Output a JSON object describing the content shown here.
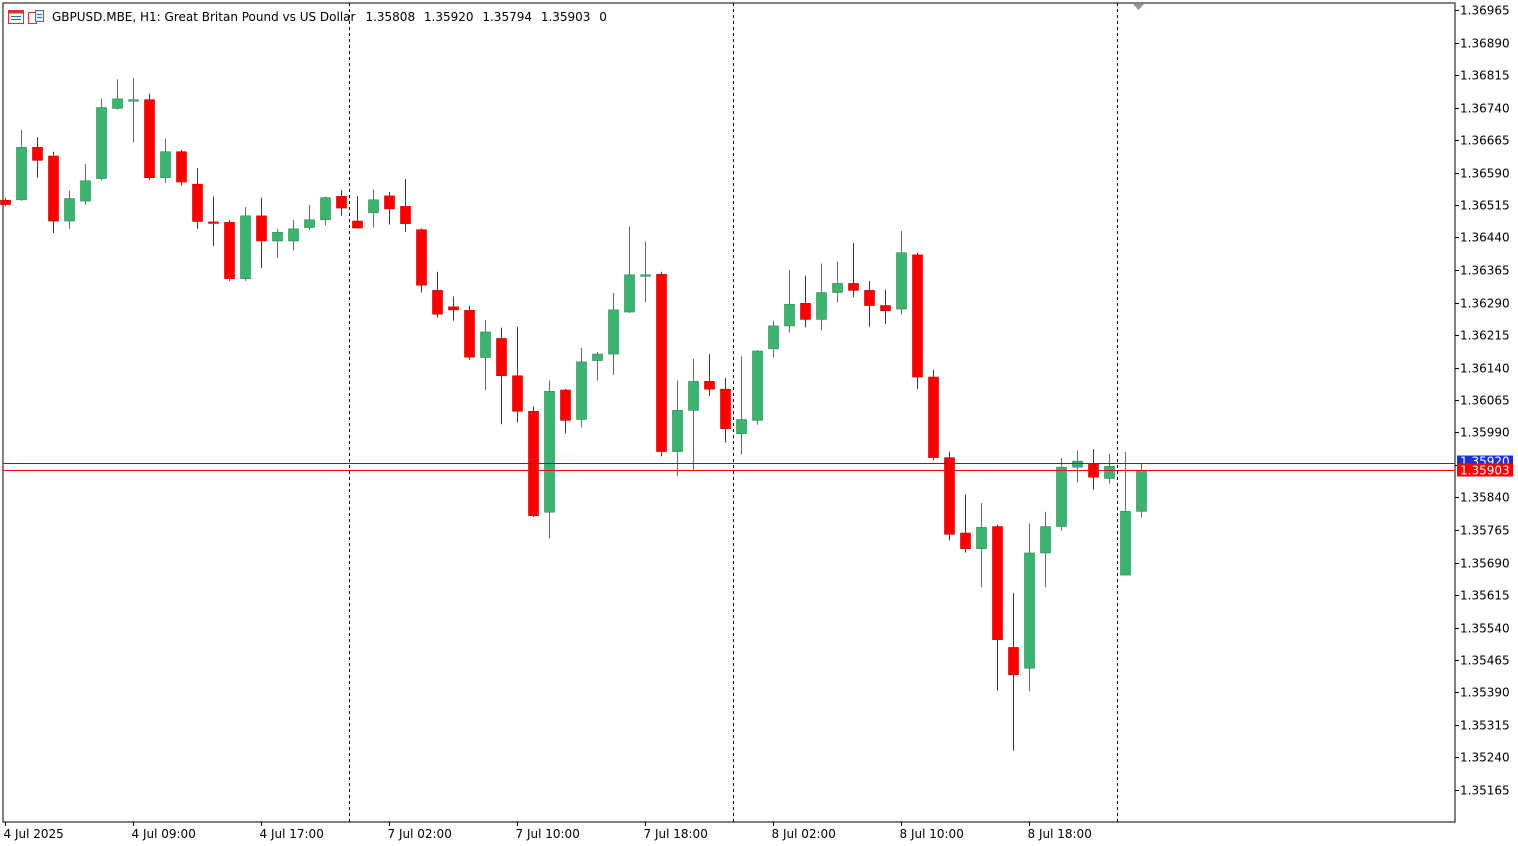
{
  "header": {
    "symbol_line": "GBPUSD.MBE, H1:  Great Britan Pound vs US Dollar",
    "open": "1.35808",
    "high": "1.35920",
    "low": "1.35794",
    "close": "1.35903",
    "volume": "0"
  },
  "colors": {
    "bull": "#3cb371",
    "bear": "#ff0000",
    "wick_bull": "#2e8b57",
    "wick_bear": "#cc0000",
    "bid_line": "#ff0000",
    "ask_line": "#1f2fd6",
    "grid": "#000000",
    "background": "#ffffff"
  },
  "chart_data": {
    "type": "candlestick",
    "symbol": "GBPUSD.MBE",
    "timeframe": "H1",
    "y_range": [
      1.3509,
      1.3704
    ],
    "y_ticks": [
      "1.36965",
      "1.36890",
      "1.36815",
      "1.36740",
      "1.36665",
      "1.36590",
      "1.36515",
      "1.36440",
      "1.36365",
      "1.36290",
      "1.36215",
      "1.36140",
      "1.36065",
      "1.35990",
      "1.35915",
      "1.35840",
      "1.35765",
      "1.35690",
      "1.35615",
      "1.35540",
      "1.35465",
      "1.35390",
      "1.35315",
      "1.35240",
      "1.35165"
    ],
    "x_labels": [
      {
        "text": "4 Jul 2025",
        "index": 0
      },
      {
        "text": "4 Jul 09:00",
        "index": 8
      },
      {
        "text": "4 Jul 17:00",
        "index": 16
      },
      {
        "text": "7 Jul 02:00",
        "index": 24
      },
      {
        "text": "7 Jul 10:00",
        "index": 32
      },
      {
        "text": "7 Jul 18:00",
        "index": 40
      },
      {
        "text": "8 Jul 02:00",
        "index": 48
      },
      {
        "text": "8 Jul 10:00",
        "index": 56
      },
      {
        "text": "8 Jul 18:00",
        "index": 64
      }
    ],
    "day_separators": [
      21.5,
      45.5,
      69.5
    ],
    "bid": 1.35903,
    "bid_label": "1.35903",
    "ask": 1.3592,
    "ask_label": "1.35920",
    "candles": [
      {
        "o": 1.36526,
        "h": 1.36532,
        "l": 1.36512,
        "c": 1.36516
      },
      {
        "o": 1.36527,
        "h": 1.36688,
        "l": 1.36525,
        "c": 1.36648
      },
      {
        "o": 1.36648,
        "h": 1.36672,
        "l": 1.36578,
        "c": 1.36618
      },
      {
        "o": 1.36628,
        "h": 1.36638,
        "l": 1.3645,
        "c": 1.36478
      },
      {
        "o": 1.36478,
        "h": 1.36548,
        "l": 1.3646,
        "c": 1.3653
      },
      {
        "o": 1.36524,
        "h": 1.3661,
        "l": 1.36516,
        "c": 1.36571
      },
      {
        "o": 1.36576,
        "h": 1.3676,
        "l": 1.36572,
        "c": 1.3674
      },
      {
        "o": 1.36738,
        "h": 1.36805,
        "l": 1.36735,
        "c": 1.3676
      },
      {
        "o": 1.36755,
        "h": 1.36808,
        "l": 1.3666,
        "c": 1.36758
      },
      {
        "o": 1.36758,
        "h": 1.36772,
        "l": 1.36572,
        "c": 1.36578
      },
      {
        "o": 1.36578,
        "h": 1.36668,
        "l": 1.36566,
        "c": 1.36638
      },
      {
        "o": 1.36638,
        "h": 1.36642,
        "l": 1.3656,
        "c": 1.36568
      },
      {
        "o": 1.36563,
        "h": 1.366,
        "l": 1.3646,
        "c": 1.36477
      },
      {
        "o": 1.36476,
        "h": 1.36535,
        "l": 1.3642,
        "c": 1.36473
      },
      {
        "o": 1.36475,
        "h": 1.3648,
        "l": 1.3634,
        "c": 1.36345
      },
      {
        "o": 1.36345,
        "h": 1.3651,
        "l": 1.3634,
        "c": 1.3649
      },
      {
        "o": 1.3649,
        "h": 1.36532,
        "l": 1.3637,
        "c": 1.36432
      },
      {
        "o": 1.36432,
        "h": 1.3646,
        "l": 1.36393,
        "c": 1.36452
      },
      {
        "o": 1.36432,
        "h": 1.3648,
        "l": 1.3641,
        "c": 1.3646
      },
      {
        "o": 1.36463,
        "h": 1.36515,
        "l": 1.36458,
        "c": 1.36481
      },
      {
        "o": 1.36481,
        "h": 1.36535,
        "l": 1.36468,
        "c": 1.36532
      },
      {
        "o": 1.36535,
        "h": 1.3655,
        "l": 1.3649,
        "c": 1.36508
      },
      {
        "o": 1.36478,
        "h": 1.36536,
        "l": 1.36462,
        "c": 1.36462
      },
      {
        "o": 1.36497,
        "h": 1.36551,
        "l": 1.36463,
        "c": 1.36527
      },
      {
        "o": 1.36536,
        "h": 1.36545,
        "l": 1.3647,
        "c": 1.36506
      },
      {
        "o": 1.36512,
        "h": 1.36575,
        "l": 1.36453,
        "c": 1.36472
      },
      {
        "o": 1.36458,
        "h": 1.36461,
        "l": 1.36313,
        "c": 1.3633
      },
      {
        "o": 1.36318,
        "h": 1.36361,
        "l": 1.36255,
        "c": 1.36263
      },
      {
        "o": 1.3628,
        "h": 1.36304,
        "l": 1.36248,
        "c": 1.36273
      },
      {
        "o": 1.36272,
        "h": 1.36283,
        "l": 1.36158,
        "c": 1.36164
      },
      {
        "o": 1.36163,
        "h": 1.3625,
        "l": 1.36088,
        "c": 1.36222
      },
      {
        "o": 1.36207,
        "h": 1.36232,
        "l": 1.36009,
        "c": 1.36121
      },
      {
        "o": 1.36121,
        "h": 1.36234,
        "l": 1.36013,
        "c": 1.36039
      },
      {
        "o": 1.36039,
        "h": 1.3605,
        "l": 1.35795,
        "c": 1.35798
      },
      {
        "o": 1.35806,
        "h": 1.3611,
        "l": 1.35745,
        "c": 1.36085
      },
      {
        "o": 1.36088,
        "h": 1.36091,
        "l": 1.35988,
        "c": 1.36018
      },
      {
        "o": 1.3602,
        "h": 1.36185,
        "l": 1.36002,
        "c": 1.36153
      },
      {
        "o": 1.36156,
        "h": 1.36176,
        "l": 1.3611,
        "c": 1.36171
      },
      {
        "o": 1.36171,
        "h": 1.36312,
        "l": 1.36123,
        "c": 1.36273
      },
      {
        "o": 1.36268,
        "h": 1.36466,
        "l": 1.36266,
        "c": 1.36354
      },
      {
        "o": 1.36354,
        "h": 1.36431,
        "l": 1.3629,
        "c": 1.36354
      },
      {
        "o": 1.36355,
        "h": 1.36361,
        "l": 1.35935,
        "c": 1.35946
      },
      {
        "o": 1.35946,
        "h": 1.3611,
        "l": 1.35889,
        "c": 1.36041
      },
      {
        "o": 1.36041,
        "h": 1.3616,
        "l": 1.35903,
        "c": 1.36108
      },
      {
        "o": 1.36108,
        "h": 1.36171,
        "l": 1.36074,
        "c": 1.3609
      },
      {
        "o": 1.3609,
        "h": 1.36116,
        "l": 1.35967,
        "c": 1.35999
      },
      {
        "o": 1.35987,
        "h": 1.36166,
        "l": 1.35939,
        "c": 1.3602
      },
      {
        "o": 1.36018,
        "h": 1.3618,
        "l": 1.36008,
        "c": 1.36178
      },
      {
        "o": 1.36183,
        "h": 1.36248,
        "l": 1.36163,
        "c": 1.36236
      },
      {
        "o": 1.36236,
        "h": 1.36365,
        "l": 1.36221,
        "c": 1.36286
      },
      {
        "o": 1.36288,
        "h": 1.36352,
        "l": 1.36233,
        "c": 1.36251
      },
      {
        "o": 1.36251,
        "h": 1.3638,
        "l": 1.36226,
        "c": 1.36313
      },
      {
        "o": 1.36313,
        "h": 1.36385,
        "l": 1.36291,
        "c": 1.36334
      },
      {
        "o": 1.36334,
        "h": 1.36428,
        "l": 1.36302,
        "c": 1.36318
      },
      {
        "o": 1.36318,
        "h": 1.3634,
        "l": 1.36234,
        "c": 1.36283
      },
      {
        "o": 1.36283,
        "h": 1.3632,
        "l": 1.3624,
        "c": 1.36271
      },
      {
        "o": 1.36275,
        "h": 1.36455,
        "l": 1.36262,
        "c": 1.36405
      },
      {
        "o": 1.364,
        "h": 1.36405,
        "l": 1.3609,
        "c": 1.36118
      },
      {
        "o": 1.36118,
        "h": 1.36135,
        "l": 1.35925,
        "c": 1.35932
      },
      {
        "o": 1.35932,
        "h": 1.35946,
        "l": 1.35741,
        "c": 1.35755
      },
      {
        "o": 1.35758,
        "h": 1.35847,
        "l": 1.35713,
        "c": 1.35722
      },
      {
        "o": 1.35722,
        "h": 1.35827,
        "l": 1.35633,
        "c": 1.35771
      },
      {
        "o": 1.35773,
        "h": 1.35777,
        "l": 1.35394,
        "c": 1.35512
      },
      {
        "o": 1.35494,
        "h": 1.3562,
        "l": 1.35256,
        "c": 1.35431
      },
      {
        "o": 1.35446,
        "h": 1.3578,
        "l": 1.35393,
        "c": 1.35712
      },
      {
        "o": 1.35712,
        "h": 1.35807,
        "l": 1.35633,
        "c": 1.35773
      },
      {
        "o": 1.35773,
        "h": 1.35931,
        "l": 1.35763,
        "c": 1.3591
      },
      {
        "o": 1.3591,
        "h": 1.35948,
        "l": 1.35875,
        "c": 1.35924
      },
      {
        "o": 1.35917,
        "h": 1.35952,
        "l": 1.35858,
        "c": 1.35887
      },
      {
        "o": 1.35884,
        "h": 1.35941,
        "l": 1.35872,
        "c": 1.35912
      },
      {
        "o": 1.35661,
        "h": 1.35945,
        "l": 1.35661,
        "c": 1.35808
      },
      {
        "o": 1.35808,
        "h": 1.3592,
        "l": 1.35794,
        "c": 1.35903
      }
    ]
  }
}
